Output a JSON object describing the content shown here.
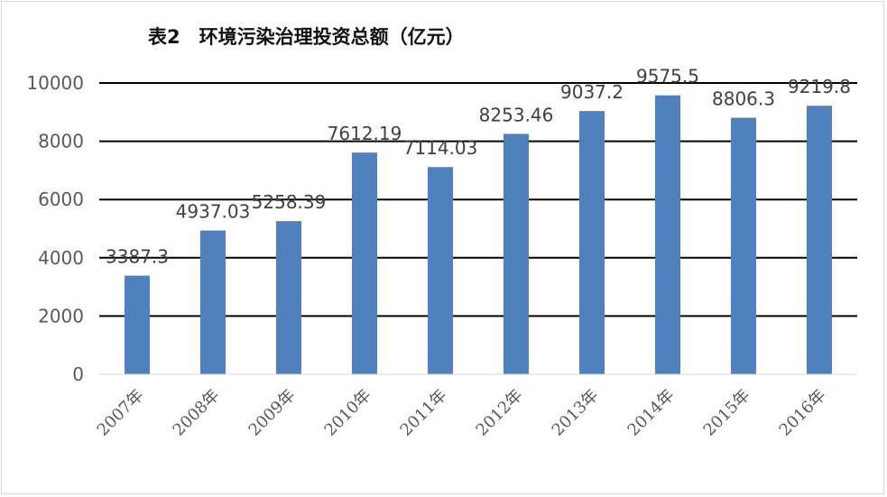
{
  "chart_data": {
    "type": "bar",
    "title": "表2　环境污染治理投资总额（亿元）",
    "categories": [
      "2007年",
      "2008年",
      "2009年",
      "2010年",
      "2011年",
      "2012年",
      "2013年",
      "2014年",
      "2015年",
      "2016年"
    ],
    "values": [
      3387.3,
      4937.03,
      5258.39,
      7612.19,
      7114.03,
      8253.46,
      9037.2,
      9575.5,
      8806.3,
      9219.8
    ],
    "data_labels": [
      "3387.3",
      "4937.03",
      "5258.39",
      "7612.19",
      "7114.03",
      "8253.46",
      "9037.2",
      "9575.5",
      "8806.3",
      "9219.8"
    ],
    "y_ticks": [
      "0",
      "2000",
      "4000",
      "6000",
      "8000",
      "10000"
    ],
    "ylim": [
      0,
      10000
    ],
    "grid": true,
    "legend": "none",
    "xlabel": "",
    "ylabel": "",
    "colors": {
      "bar": "#4f81bd",
      "grid": "#000000",
      "text": "#595959"
    }
  }
}
